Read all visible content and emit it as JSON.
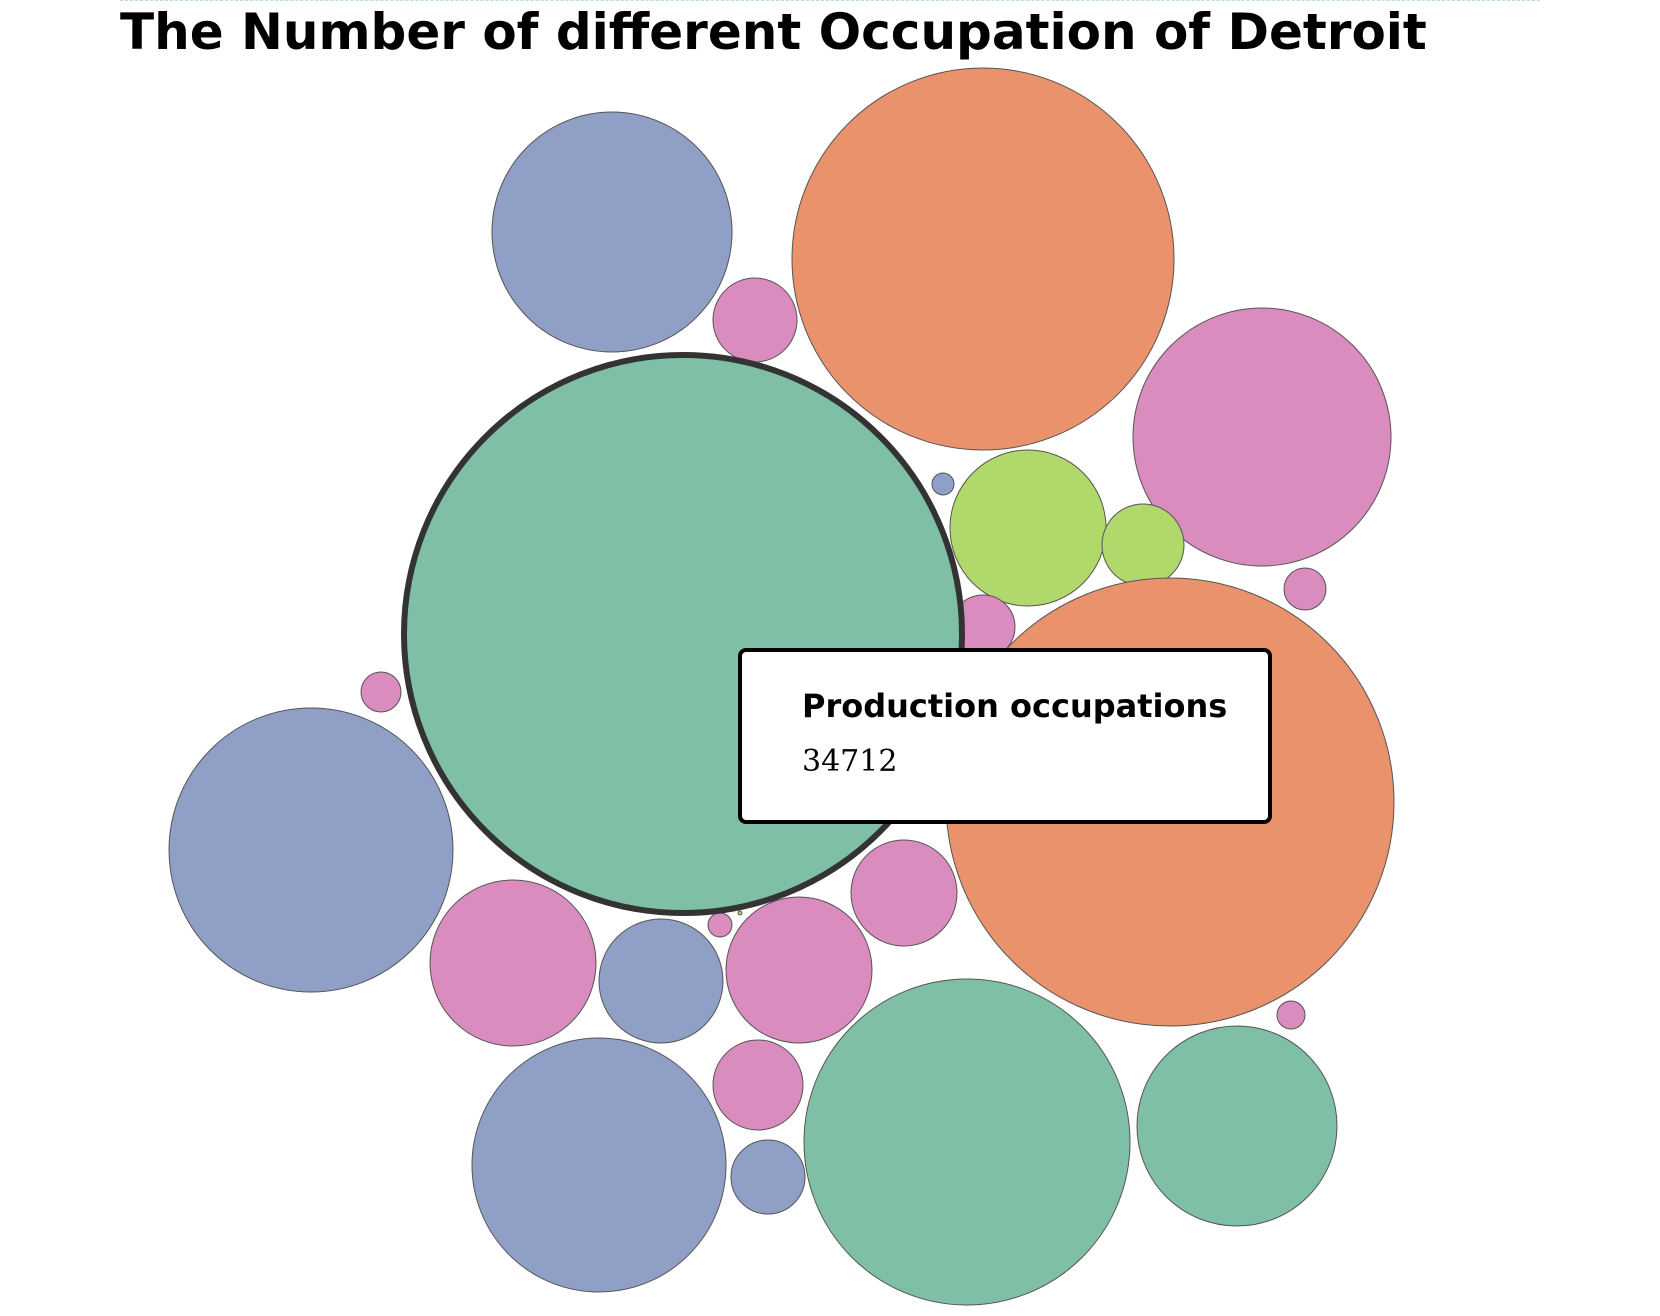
{
  "chart_data": {
    "type": "bubble",
    "title": "The Number of different Occupation of Detroit",
    "colors": {
      "green": "#7fbfa6",
      "orange": "#ea926b",
      "blue": "#909fc6",
      "pink": "#d98cbd",
      "lime": "#b1d86a",
      "outline": "#555555",
      "highlight_outline": "#333333"
    },
    "highlighted": {
      "label": "Production occupations",
      "value": 34712
    }
  }
}
